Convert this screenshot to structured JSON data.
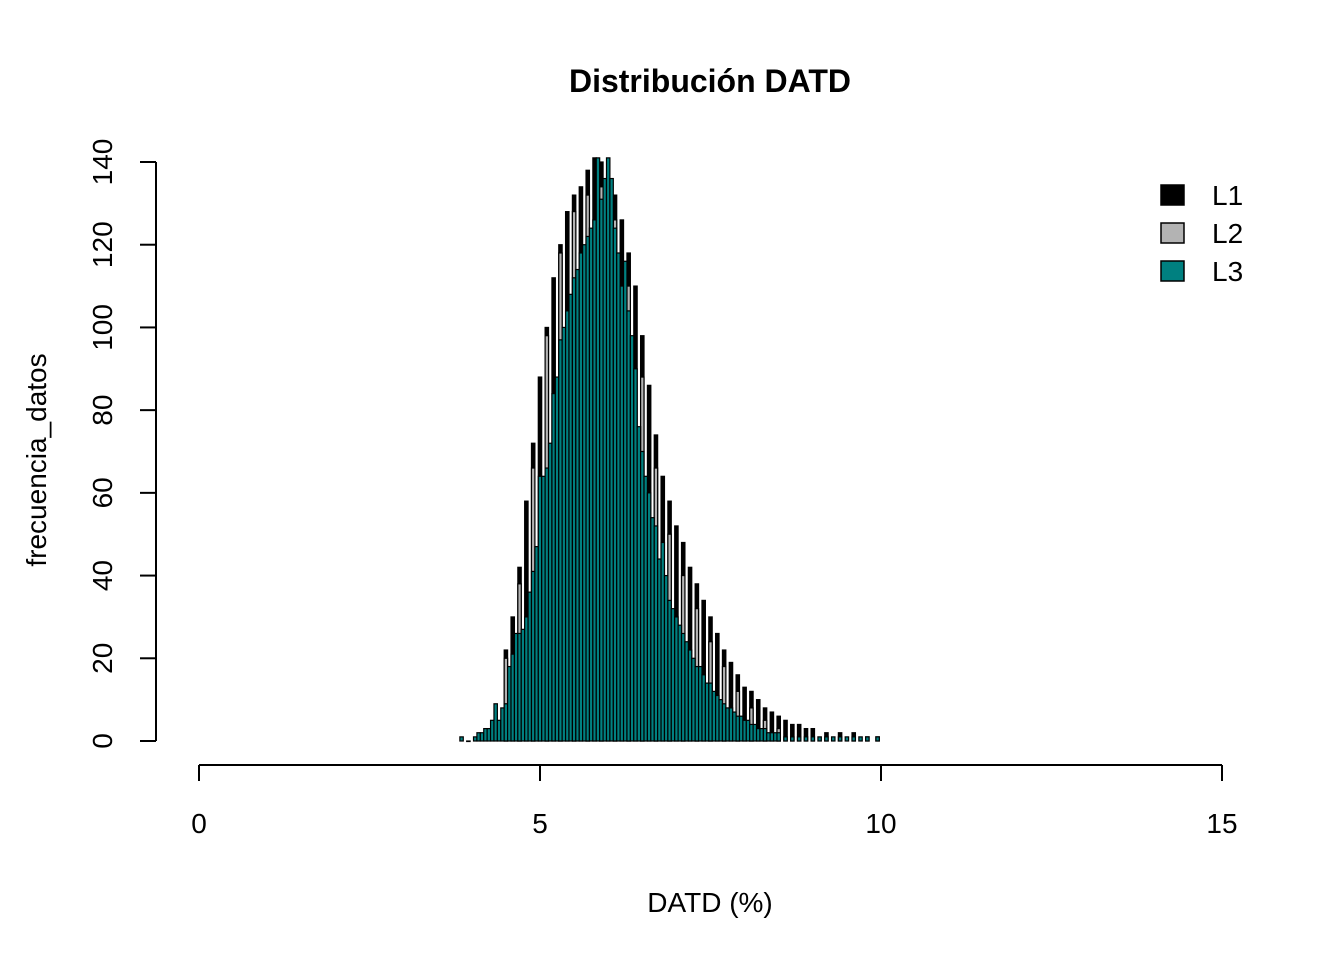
{
  "chart_data": {
    "type": "bar",
    "title": "Distribución DATD",
    "xlabel": "DATD (%)",
    "ylabel": "frecuencia_datos",
    "xlim": [
      0,
      15
    ],
    "ylim": [
      0,
      140
    ],
    "x_ticks": [
      "0",
      "5",
      "10",
      "15"
    ],
    "y_ticks": [
      "0",
      "20",
      "40",
      "60",
      "80",
      "100",
      "120",
      "140"
    ],
    "bin_width": 0.05,
    "grid": false,
    "legend_position": "top-right",
    "series": [
      {
        "name": "L1",
        "color": "#000000",
        "x": [
          4.5,
          4.6,
          4.7,
          4.8,
          4.9,
          5.0,
          5.1,
          5.2,
          5.3,
          5.4,
          5.5,
          5.6,
          5.7,
          5.8,
          5.9,
          6.0,
          6.1,
          6.2,
          6.3,
          6.4,
          6.5,
          6.6,
          6.7,
          6.8,
          6.9,
          7.0,
          7.1,
          7.2,
          7.3,
          7.4,
          7.5,
          7.6,
          7.7,
          7.8,
          7.9,
          8.0,
          8.1,
          8.2,
          8.3,
          8.4,
          8.5,
          8.6,
          8.7,
          8.8,
          8.9,
          9.0,
          9.2,
          9.4,
          9.6,
          9.8,
          9.95
        ],
        "values": [
          22,
          30,
          42,
          58,
          72,
          88,
          100,
          112,
          120,
          128,
          132,
          134,
          138,
          141,
          140,
          136,
          132,
          126,
          118,
          110,
          98,
          86,
          74,
          64,
          58,
          52,
          48,
          42,
          38,
          34,
          30,
          26,
          22,
          19,
          16,
          13,
          12,
          10,
          8,
          7,
          6,
          5,
          4,
          4,
          3,
          3,
          2,
          2,
          2,
          1,
          1
        ]
      },
      {
        "name": "L2",
        "color": "#b3b3b3",
        "x": [
          4.5,
          4.7,
          4.9,
          5.1,
          5.3,
          5.5,
          5.7,
          5.9,
          6.1,
          6.3,
          6.5,
          6.7,
          6.9,
          7.1,
          7.3,
          7.5,
          7.7,
          7.9,
          8.1,
          8.3,
          8.5
        ],
        "values": [
          20,
          38,
          66,
          98,
          118,
          128,
          132,
          134,
          126,
          110,
          88,
          66,
          50,
          40,
          32,
          24,
          18,
          12,
          8,
          5,
          3
        ]
      },
      {
        "name": "L3",
        "color": "#008080",
        "x": [
          3.85,
          3.95,
          4.05,
          4.1,
          4.15,
          4.2,
          4.25,
          4.3,
          4.35,
          4.4,
          4.45,
          4.5,
          4.55,
          4.6,
          4.65,
          4.7,
          4.75,
          4.8,
          4.85,
          4.9,
          4.95,
          5.0,
          5.05,
          5.1,
          5.15,
          5.2,
          5.25,
          5.3,
          5.35,
          5.4,
          5.45,
          5.5,
          5.55,
          5.6,
          5.65,
          5.7,
          5.75,
          5.8,
          5.85,
          5.9,
          5.95,
          6.0,
          6.05,
          6.1,
          6.15,
          6.2,
          6.25,
          6.3,
          6.35,
          6.4,
          6.45,
          6.5,
          6.55,
          6.6,
          6.65,
          6.7,
          6.75,
          6.8,
          6.85,
          6.9,
          6.95,
          7.0,
          7.05,
          7.1,
          7.15,
          7.2,
          7.25,
          7.3,
          7.35,
          7.4,
          7.45,
          7.5,
          7.55,
          7.6,
          7.65,
          7.7,
          7.75,
          7.8,
          7.85,
          7.9,
          7.95,
          8.0,
          8.05,
          8.1,
          8.15,
          8.2,
          8.25,
          8.3,
          8.35,
          8.4,
          8.45,
          8.5,
          8.6,
          8.7,
          8.8,
          8.9,
          9.0,
          9.1,
          9.2,
          9.3,
          9.4,
          9.5,
          9.6,
          9.7,
          9.8,
          9.95
        ],
        "values": [
          1,
          0,
          1,
          2,
          2,
          3,
          3,
          5,
          9,
          5,
          8,
          9,
          18,
          21,
          26,
          26,
          27,
          30,
          36,
          41,
          47,
          64,
          64,
          66,
          72,
          84,
          88,
          97,
          100,
          104,
          108,
          112,
          114,
          118,
          120,
          122,
          124,
          126,
          141,
          131,
          136,
          141,
          136,
          124,
          118,
          110,
          116,
          104,
          98,
          90,
          76,
          70,
          64,
          60,
          54,
          52,
          44,
          48,
          40,
          34,
          32,
          30,
          28,
          26,
          24,
          22,
          20,
          18,
          18,
          16,
          14,
          14,
          12,
          11,
          10,
          9,
          8,
          8,
          7,
          6,
          6,
          5,
          5,
          4,
          4,
          3,
          3,
          3,
          2,
          2,
          2,
          2,
          1,
          1,
          1,
          1,
          1,
          1,
          1,
          1,
          1,
          1,
          1,
          1,
          1,
          1
        ]
      }
    ]
  }
}
